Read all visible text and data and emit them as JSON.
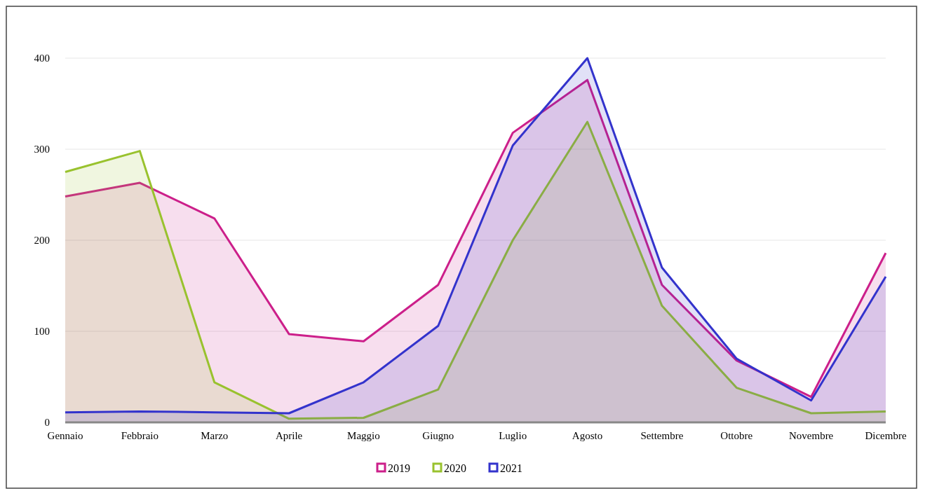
{
  "chart_data": {
    "type": "area",
    "categories": [
      "Gennaio",
      "Febbraio",
      "Marzo",
      "Aprile",
      "Maggio",
      "Giugno",
      "Luglio",
      "Agosto",
      "Settembre",
      "Ottobre",
      "Novembre",
      "Dicembre"
    ],
    "series": [
      {
        "name": "2019",
        "color": "#cc1f8a",
        "values": [
          248,
          263,
          224,
          97,
          89,
          151,
          318,
          376,
          151,
          68,
          28,
          186
        ]
      },
      {
        "name": "2020",
        "color": "#99c22e",
        "values": [
          275,
          298,
          44,
          4,
          5,
          36,
          200,
          330,
          128,
          38,
          10,
          12
        ]
      },
      {
        "name": "2021",
        "color": "#3333cc",
        "values": [
          11,
          12,
          11,
          10,
          44,
          106,
          304,
          400,
          170,
          70,
          24,
          160
        ]
      }
    ],
    "ylim": [
      0,
      400
    ],
    "yticks": [
      0,
      100,
      200,
      300,
      400
    ],
    "grid": "y",
    "legend": "bottom"
  }
}
